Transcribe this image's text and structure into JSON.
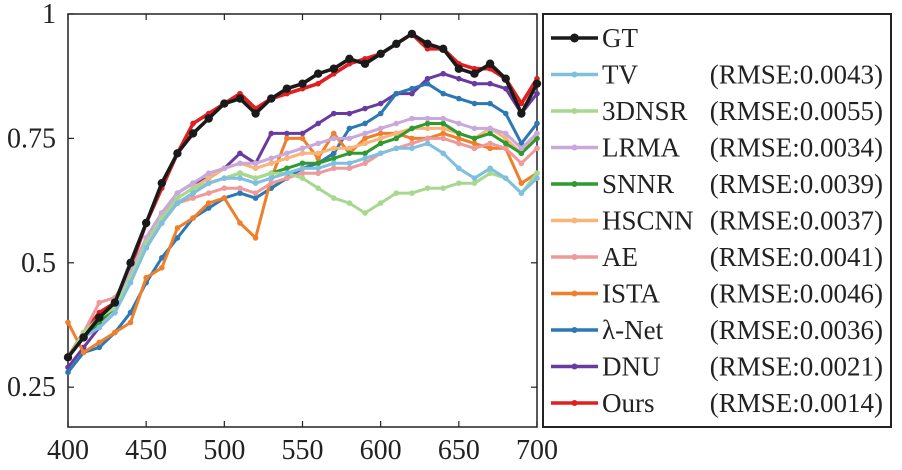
{
  "chart_data": {
    "type": "line",
    "title": "",
    "xlabel": "",
    "ylabel": "",
    "xlim": [
      400,
      700
    ],
    "ylim": [
      0.17,
      1.0
    ],
    "x_ticks": [
      "400",
      "450",
      "500",
      "550",
      "600",
      "650",
      "700"
    ],
    "y_ticks": [
      "0.25",
      "0.5",
      "0.75",
      "1"
    ],
    "grid": false,
    "legend_position": "right",
    "x": [
      400,
      410,
      420,
      430,
      440,
      450,
      460,
      470,
      480,
      490,
      500,
      510,
      520,
      530,
      540,
      550,
      560,
      570,
      580,
      590,
      600,
      610,
      620,
      630,
      640,
      650,
      660,
      670,
      680,
      690,
      700
    ],
    "series": [
      {
        "name": "GT",
        "rmse": "",
        "color": "#1a1a1a",
        "values": [
          0.31,
          0.35,
          0.39,
          0.42,
          0.5,
          0.58,
          0.66,
          0.72,
          0.76,
          0.79,
          0.82,
          0.83,
          0.8,
          0.83,
          0.85,
          0.86,
          0.88,
          0.89,
          0.91,
          0.9,
          0.92,
          0.94,
          0.96,
          0.94,
          0.93,
          0.89,
          0.88,
          0.9,
          0.87,
          0.8,
          0.86
        ]
      },
      {
        "name": "TV",
        "rmse": "(RMSE:0.0043)",
        "color": "#7fbfe0",
        "values": [
          0.31,
          0.35,
          0.37,
          0.4,
          0.46,
          0.53,
          0.58,
          0.62,
          0.64,
          0.66,
          0.67,
          0.67,
          0.66,
          0.67,
          0.68,
          0.69,
          0.69,
          0.7,
          0.7,
          0.71,
          0.72,
          0.73,
          0.73,
          0.74,
          0.72,
          0.69,
          0.67,
          0.69,
          0.67,
          0.64,
          0.67
        ]
      },
      {
        "name": "3DNSR",
        "rmse": "(RMSE:0.0055)",
        "color": "#a8d890",
        "values": [
          0.31,
          0.36,
          0.39,
          0.41,
          0.47,
          0.54,
          0.59,
          0.63,
          0.65,
          0.66,
          0.67,
          0.68,
          0.67,
          0.68,
          0.68,
          0.67,
          0.65,
          0.63,
          0.62,
          0.6,
          0.62,
          0.64,
          0.64,
          0.65,
          0.65,
          0.66,
          0.66,
          0.68,
          0.67,
          0.64,
          0.68
        ]
      },
      {
        "name": "LRMA",
        "rmse": "(RMSE:0.0034)",
        "color": "#c9a8dc",
        "values": [
          0.31,
          0.35,
          0.39,
          0.42,
          0.48,
          0.55,
          0.6,
          0.64,
          0.66,
          0.68,
          0.69,
          0.7,
          0.7,
          0.71,
          0.72,
          0.73,
          0.74,
          0.75,
          0.75,
          0.76,
          0.77,
          0.78,
          0.79,
          0.79,
          0.79,
          0.78,
          0.77,
          0.77,
          0.76,
          0.73,
          0.76
        ]
      },
      {
        "name": "SNNR",
        "rmse": "(RMSE:0.0039)",
        "color": "#2e9a30",
        "values": [
          0.31,
          0.35,
          0.38,
          0.41,
          0.47,
          0.53,
          0.58,
          0.62,
          0.64,
          0.66,
          0.67,
          0.68,
          0.67,
          0.68,
          0.69,
          0.7,
          0.7,
          0.71,
          0.72,
          0.72,
          0.74,
          0.75,
          0.77,
          0.78,
          0.78,
          0.76,
          0.75,
          0.76,
          0.74,
          0.72,
          0.75
        ]
      },
      {
        "name": "HSCNN",
        "rmse": "(RMSE:0.0037)",
        "color": "#f7b57a",
        "values": [
          0.31,
          0.35,
          0.38,
          0.41,
          0.47,
          0.54,
          0.59,
          0.63,
          0.65,
          0.67,
          0.69,
          0.7,
          0.69,
          0.7,
          0.71,
          0.72,
          0.72,
          0.73,
          0.73,
          0.74,
          0.75,
          0.76,
          0.77,
          0.77,
          0.77,
          0.76,
          0.75,
          0.77,
          0.75,
          0.72,
          0.76
        ]
      },
      {
        "name": "AE",
        "rmse": "(RMSE:0.0041)",
        "color": "#ef9a9a",
        "values": [
          0.31,
          0.36,
          0.42,
          0.43,
          0.48,
          0.55,
          0.59,
          0.62,
          0.63,
          0.64,
          0.65,
          0.65,
          0.64,
          0.66,
          0.67,
          0.68,
          0.68,
          0.69,
          0.69,
          0.7,
          0.72,
          0.73,
          0.74,
          0.75,
          0.75,
          0.74,
          0.73,
          0.74,
          0.73,
          0.7,
          0.73
        ]
      },
      {
        "name": "ISTA",
        "rmse": "(RMSE:0.0046)",
        "color": "#f07f2c",
        "values": [
          0.38,
          0.32,
          0.34,
          0.36,
          0.38,
          0.47,
          0.49,
          0.57,
          0.59,
          0.62,
          0.63,
          0.58,
          0.55,
          0.67,
          0.75,
          0.75,
          0.71,
          0.76,
          0.72,
          0.75,
          0.76,
          0.76,
          0.75,
          0.75,
          0.76,
          0.75,
          0.74,
          0.73,
          0.73,
          0.66,
          0.68
        ]
      },
      {
        "name": "λ-Net",
        "rmse": "(RMSE:0.0036)",
        "color": "#2d78b4",
        "values": [
          0.28,
          0.32,
          0.33,
          0.36,
          0.4,
          0.46,
          0.51,
          0.55,
          0.59,
          0.61,
          0.63,
          0.64,
          0.63,
          0.65,
          0.67,
          0.69,
          0.7,
          0.72,
          0.77,
          0.78,
          0.8,
          0.84,
          0.85,
          0.86,
          0.84,
          0.83,
          0.82,
          0.82,
          0.8,
          0.74,
          0.78
        ]
      },
      {
        "name": "DNU",
        "rmse": "(RMSE:0.0021)",
        "color": "#6a3aa0",
        "values": [
          0.29,
          0.33,
          0.37,
          0.4,
          0.47,
          0.55,
          0.6,
          0.64,
          0.66,
          0.67,
          0.69,
          0.72,
          0.7,
          0.76,
          0.76,
          0.76,
          0.78,
          0.8,
          0.8,
          0.81,
          0.82,
          0.84,
          0.84,
          0.87,
          0.88,
          0.87,
          0.86,
          0.86,
          0.85,
          0.8,
          0.84
        ]
      },
      {
        "name": "Ours",
        "rmse": "(RMSE:0.0014)",
        "color": "#e02020",
        "values": [
          0.31,
          0.36,
          0.4,
          0.42,
          0.49,
          0.58,
          0.65,
          0.72,
          0.78,
          0.8,
          0.82,
          0.84,
          0.81,
          0.83,
          0.84,
          0.85,
          0.86,
          0.88,
          0.9,
          0.91,
          0.92,
          0.94,
          0.96,
          0.93,
          0.93,
          0.9,
          0.89,
          0.89,
          0.87,
          0.82,
          0.87
        ]
      }
    ]
  }
}
